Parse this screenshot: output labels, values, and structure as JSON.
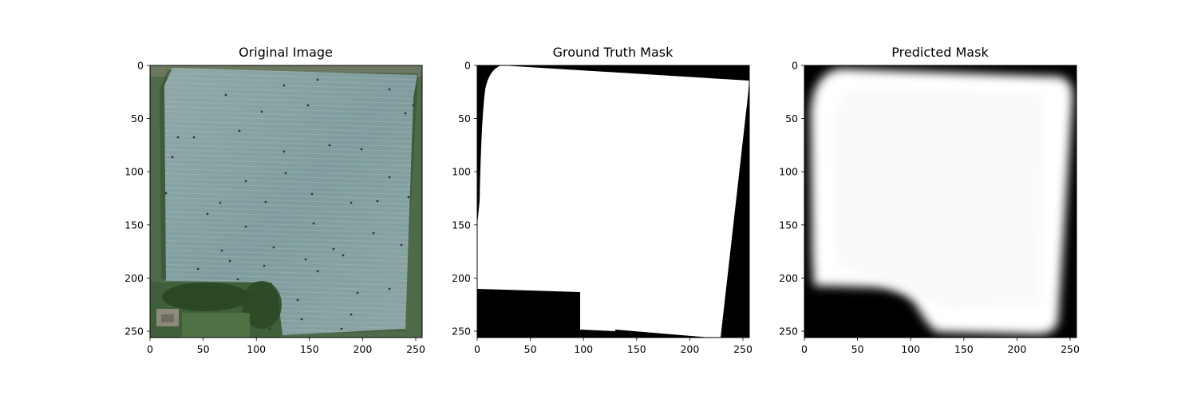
{
  "figure": {
    "panels": [
      {
        "id": "original",
        "title": "Original Image",
        "image": "satellite-field",
        "x_ticks": [
          "0",
          "50",
          "100",
          "150",
          "200",
          "250"
        ],
        "y_ticks": [
          "0",
          "50",
          "100",
          "150",
          "200",
          "250"
        ],
        "xlim": [
          0,
          256
        ],
        "ylim": [
          256,
          0
        ]
      },
      {
        "id": "ground-truth",
        "title": "Ground Truth Mask",
        "image": "binary-mask",
        "x_ticks": [
          "0",
          "50",
          "100",
          "150",
          "200",
          "250"
        ],
        "y_ticks": [
          "0",
          "50",
          "100",
          "150",
          "200",
          "250"
        ],
        "xlim": [
          0,
          256
        ],
        "ylim": [
          256,
          0
        ]
      },
      {
        "id": "predicted",
        "title": "Predicted Mask",
        "image": "soft-mask",
        "x_ticks": [
          "0",
          "50",
          "100",
          "150",
          "200",
          "250"
        ],
        "y_ticks": [
          "0",
          "50",
          "100",
          "150",
          "200",
          "250"
        ],
        "xlim": [
          0,
          256
        ],
        "ylim": [
          256,
          0
        ]
      }
    ]
  }
}
